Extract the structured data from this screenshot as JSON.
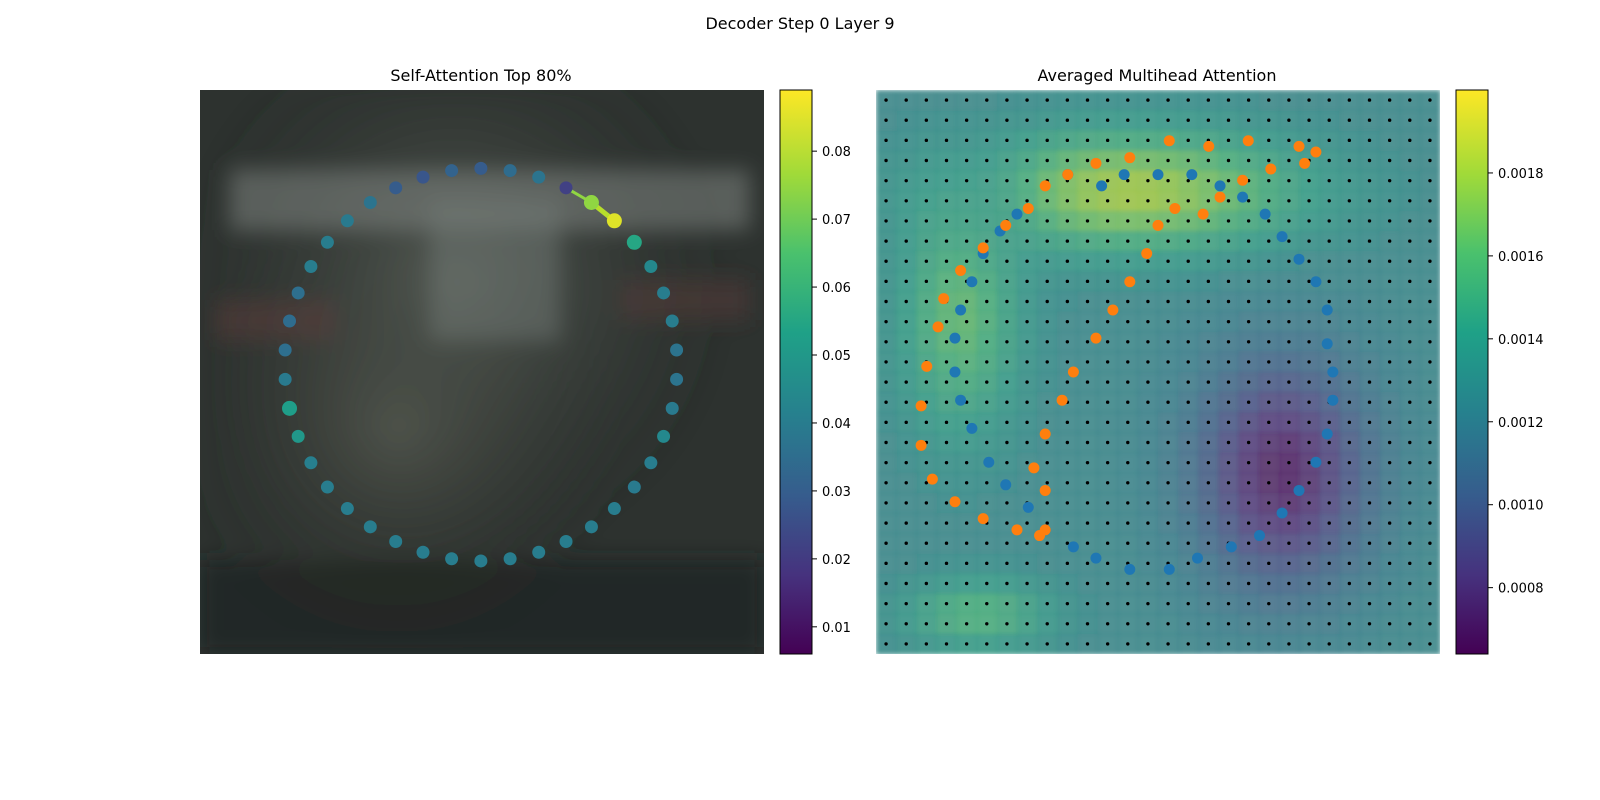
{
  "figure": {
    "suptitle": "Decoder Step 0 Layer 9"
  },
  "chart_data": [
    {
      "type": "scatter",
      "title": "Self-Attention Top 80%",
      "description_of_points": "42 polygon vertices arranged on a circle, colored by attention weight; a short line segment highlights the top-attended neighbors",
      "colorbar": {
        "vmin": 0.006,
        "vmax": 0.089,
        "ticks": [
          0.01,
          0.02,
          0.03,
          0.04,
          0.05,
          0.06,
          0.07,
          0.08
        ],
        "tick_labels": [
          "0.01",
          "0.02",
          "0.03",
          "0.04",
          "0.05",
          "0.06",
          "0.07",
          "0.08"
        ],
        "colormap": "viridis"
      },
      "vertex_attention": [
        0.03,
        0.035,
        0.038,
        0.022,
        0.075,
        0.085,
        0.055,
        0.045,
        0.041,
        0.041,
        0.038,
        0.038,
        0.04,
        0.045,
        0.041,
        0.04,
        0.041,
        0.041,
        0.041,
        0.041,
        0.041,
        0.041,
        0.041,
        0.041,
        0.041,
        0.041,
        0.041,
        0.041,
        0.042,
        0.05,
        0.052,
        0.04,
        0.036,
        0.035,
        0.036,
        0.041,
        0.041,
        0.04,
        0.038,
        0.03,
        0.028,
        0.032
      ],
      "highlight_segment_vertices": [
        4,
        5
      ]
    },
    {
      "type": "heatmap",
      "title": "Averaged Multihead Attention",
      "colorbar": {
        "vmin": 0.00064,
        "vmax": 0.002,
        "ticks": [
          0.0008,
          0.001,
          0.0012,
          0.0014,
          0.0016,
          0.0018
        ],
        "tick_labels": [
          "0.0008",
          "0.0010",
          "0.0012",
          "0.0014",
          "0.0016",
          "0.0018"
        ],
        "colormap": "viridis"
      },
      "grid_size": 28,
      "blue_series_name": "",
      "orange_series_name": "",
      "blue_points": [
        [
          0.34,
          0.15
        ],
        [
          0.4,
          0.17
        ],
        [
          0.44,
          0.15
        ],
        [
          0.5,
          0.15
        ],
        [
          0.56,
          0.15
        ],
        [
          0.61,
          0.17
        ],
        [
          0.65,
          0.19
        ],
        [
          0.69,
          0.22
        ],
        [
          0.72,
          0.26
        ],
        [
          0.75,
          0.3
        ],
        [
          0.78,
          0.34
        ],
        [
          0.8,
          0.39
        ],
        [
          0.8,
          0.45
        ],
        [
          0.81,
          0.5
        ],
        [
          0.81,
          0.55
        ],
        [
          0.8,
          0.61
        ],
        [
          0.78,
          0.66
        ],
        [
          0.75,
          0.71
        ],
        [
          0.72,
          0.75
        ],
        [
          0.68,
          0.79
        ],
        [
          0.63,
          0.81
        ],
        [
          0.57,
          0.83
        ],
        [
          0.52,
          0.85
        ],
        [
          0.45,
          0.85
        ],
        [
          0.39,
          0.83
        ],
        [
          0.35,
          0.81
        ],
        [
          0.3,
          0.78
        ],
        [
          0.27,
          0.74
        ],
        [
          0.23,
          0.7
        ],
        [
          0.2,
          0.66
        ],
        [
          0.17,
          0.6
        ],
        [
          0.15,
          0.55
        ],
        [
          0.14,
          0.5
        ],
        [
          0.14,
          0.44
        ],
        [
          0.15,
          0.39
        ],
        [
          0.17,
          0.34
        ],
        [
          0.19,
          0.29
        ],
        [
          0.22,
          0.25
        ],
        [
          0.25,
          0.22
        ]
      ],
      "orange_points": [
        [
          0.27,
          0.21
        ],
        [
          0.23,
          0.24
        ],
        [
          0.19,
          0.28
        ],
        [
          0.15,
          0.32
        ],
        [
          0.12,
          0.37
        ],
        [
          0.11,
          0.42
        ],
        [
          0.09,
          0.49
        ],
        [
          0.08,
          0.56
        ],
        [
          0.08,
          0.63
        ],
        [
          0.1,
          0.69
        ],
        [
          0.14,
          0.73
        ],
        [
          0.19,
          0.76
        ],
        [
          0.25,
          0.78
        ],
        [
          0.29,
          0.79
        ],
        [
          0.3,
          0.78
        ],
        [
          0.3,
          0.71
        ],
        [
          0.28,
          0.67
        ],
        [
          0.3,
          0.61
        ],
        [
          0.33,
          0.55
        ],
        [
          0.35,
          0.5
        ],
        [
          0.39,
          0.44
        ],
        [
          0.42,
          0.39
        ],
        [
          0.45,
          0.34
        ],
        [
          0.48,
          0.29
        ],
        [
          0.5,
          0.24
        ],
        [
          0.53,
          0.21
        ],
        [
          0.58,
          0.22
        ],
        [
          0.61,
          0.19
        ],
        [
          0.65,
          0.16
        ],
        [
          0.7,
          0.14
        ],
        [
          0.76,
          0.13
        ],
        [
          0.78,
          0.11
        ],
        [
          0.75,
          0.1
        ],
        [
          0.66,
          0.09
        ],
        [
          0.59,
          0.1
        ],
        [
          0.52,
          0.09
        ],
        [
          0.45,
          0.12
        ],
        [
          0.39,
          0.13
        ],
        [
          0.34,
          0.15
        ],
        [
          0.3,
          0.17
        ]
      ]
    }
  ]
}
